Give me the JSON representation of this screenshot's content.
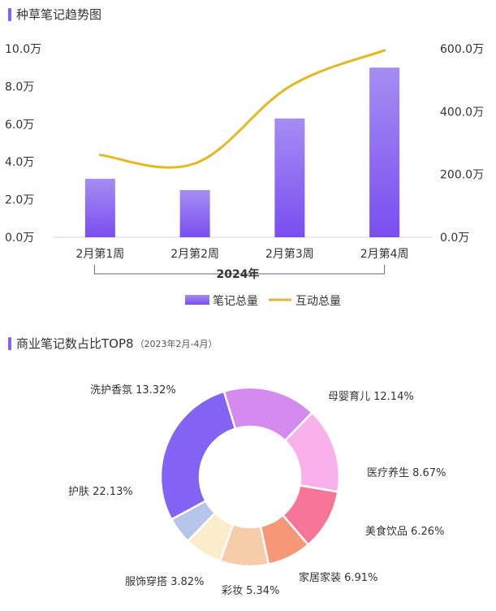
{
  "section1": {
    "title": "种草笔记趋势图"
  },
  "section2": {
    "title": "商业笔记数占比TOP8",
    "subtitle": "（2023年2月-4月）"
  },
  "chart_data": [
    {
      "type": "bar",
      "categories": [
        "2月第1周",
        "2月第2周",
        "2月第3周",
        "2月第4周"
      ],
      "group_label": "2024年",
      "series": [
        {
          "name": "笔记总量",
          "type": "bar",
          "axis": "left",
          "values": [
            3.1,
            2.5,
            6.3,
            9.0
          ]
        },
        {
          "name": "互动总量",
          "type": "line",
          "axis": "right",
          "values": [
            262,
            235,
            480,
            595
          ]
        }
      ],
      "y_left": {
        "ticks": [
          "0.0万",
          "2.0万",
          "4.0万",
          "6.0万",
          "8.0万",
          "10.0万"
        ],
        "range": [
          0,
          10
        ]
      },
      "y_right": {
        "ticks": [
          "0.0万",
          "200.0万",
          "400.0万",
          "600.0万"
        ],
        "range": [
          0,
          600
        ]
      },
      "legend_position": "bottom",
      "colors": {
        "bar_top": "#a58df3",
        "bar_bottom": "#7a4ef0",
        "line": "#e5b820"
      }
    },
    {
      "type": "pie",
      "donut": true,
      "slices": [
        {
          "label": "洗护香氛",
          "value": 13.32,
          "display": "洗护香氛 13.32%",
          "color": "#d58af0"
        },
        {
          "label": "母婴育儿",
          "value": 12.14,
          "display": "母婴育儿 12.14%",
          "color": "#f8b1ea"
        },
        {
          "label": "医疗养生",
          "value": 8.67,
          "display": "医疗养生 8.67%",
          "color": "#f77597"
        },
        {
          "label": "美食饮品",
          "value": 6.26,
          "display": "美食饮品 6.26%",
          "color": "#f69878"
        },
        {
          "label": "家居家装",
          "value": 6.91,
          "display": "家居家装 6.91%",
          "color": "#f7cda9"
        },
        {
          "label": "彩妆",
          "value": 5.34,
          "display": "彩妆 5.34%",
          "color": "#fbedcc"
        },
        {
          "label": "服饰穿搭",
          "value": 3.82,
          "display": "服饰穿搭 3.82%",
          "color": "#b7c5ea"
        },
        {
          "label": "护肤",
          "value": 22.13,
          "display": "护肤 22.13%",
          "color": "#8363f4"
        }
      ]
    }
  ]
}
